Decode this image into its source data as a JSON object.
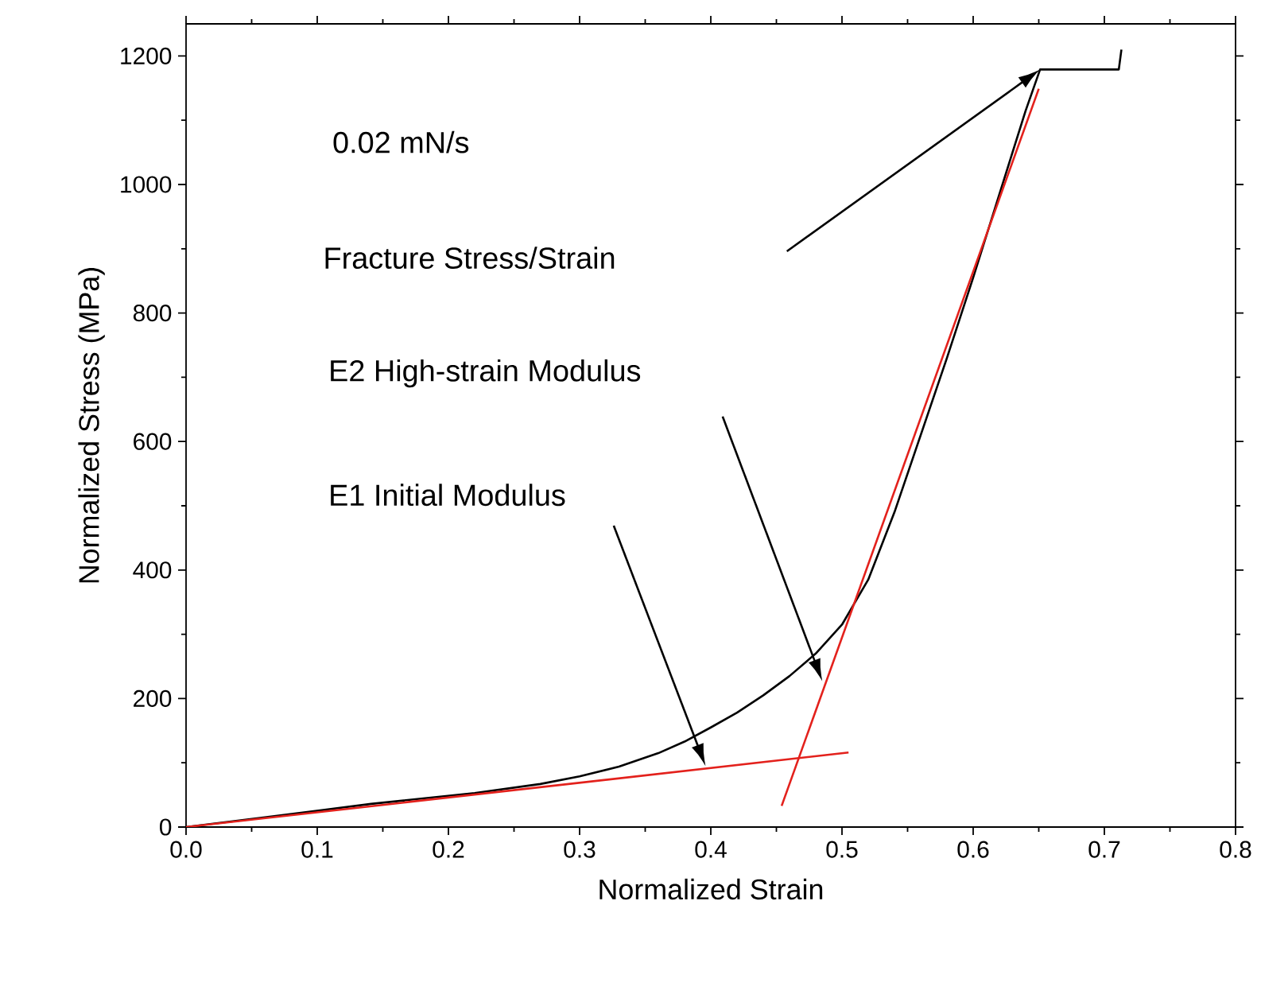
{
  "chart_data": {
    "type": "line",
    "xlabel": "Normalized Strain",
    "ylabel": "Normalized Stress (MPa)",
    "xlim": [
      0,
      0.8
    ],
    "ylim": [
      0,
      1250
    ],
    "xticks": [
      {
        "value": 0,
        "label": "0.0"
      },
      {
        "value": 0.1,
        "label": "0.1"
      },
      {
        "value": 0.2,
        "label": "0.2"
      },
      {
        "value": 0.3,
        "label": "0.3"
      },
      {
        "value": 0.4,
        "label": "0.4"
      },
      {
        "value": 0.5,
        "label": "0.5"
      },
      {
        "value": 0.6,
        "label": "0.6"
      },
      {
        "value": 0.7,
        "label": "0.7"
      },
      {
        "value": 0.8,
        "label": "0.8"
      }
    ],
    "yticks": [
      0,
      200,
      400,
      600,
      800,
      1000,
      1200
    ],
    "grid": false,
    "marker": "none",
    "line_style": "solid",
    "series": [
      {
        "color": "#000000",
        "x": [
          0,
          0.06,
          0.141,
          0.22,
          0.27,
          0.3,
          0.33,
          0.36,
          0.38,
          0.4,
          0.42,
          0.44,
          0.46,
          0.48,
          0.5,
          0.52,
          0.54,
          0.56,
          0.58,
          0.6,
          0.62,
          0.64,
          0.651,
          0.711,
          0.713
        ],
        "values": [
          0,
          15,
          36,
          53,
          67,
          79,
          94,
          115,
          133,
          155,
          178,
          205,
          235,
          270,
          315,
          385,
          490,
          610,
          730,
          855,
          985,
          1115,
          1179,
          1179,
          1210
        ]
      },
      {
        "type": "line",
        "color": "#e3211c",
        "x": [
          0,
          0.505
        ],
        "values": [
          0,
          116
        ]
      },
      {
        "type": "line",
        "color": "#e3211c",
        "x": [
          0.454,
          0.65
        ],
        "values": [
          33,
          1149
        ]
      }
    ],
    "annotations": [
      "0.02 mN/s",
      "Fracture Stress/Strain",
      "E2 High-strain Modulus",
      "E1 Initial Modulus"
    ]
  }
}
